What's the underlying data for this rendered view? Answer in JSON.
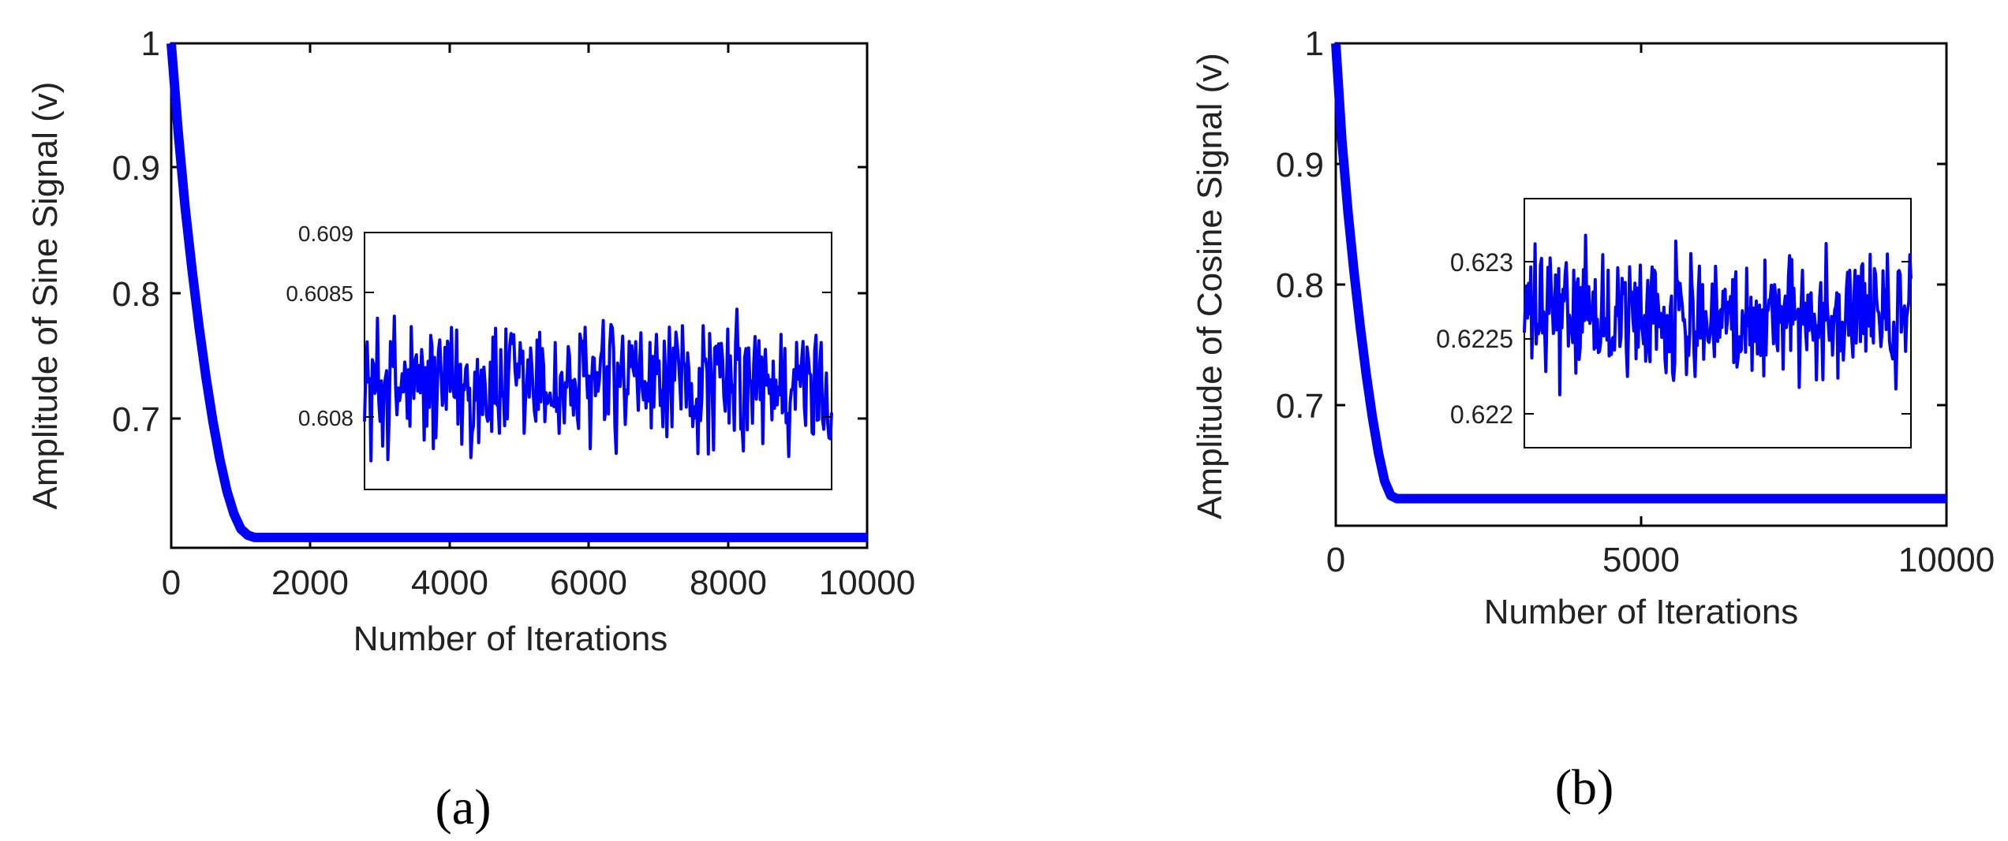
{
  "chart_data": [
    {
      "panel": "(a)",
      "type": "line",
      "xlabel": "Number of Iterations",
      "ylabel": "Amplitude of Sine Signal (v)",
      "xlim": [
        0,
        10000
      ],
      "ylim": [
        0.6,
        1.0
      ],
      "xticks": [
        "0",
        "2000",
        "4000",
        "6000",
        "8000",
        "10000"
      ],
      "yticks": [
        "0.7",
        "0.8",
        "0.9",
        "1"
      ],
      "grid": false,
      "line_color": "#0000ff",
      "series": [
        {
          "x": [
            0,
            100,
            200,
            300,
            400,
            500,
            600,
            700,
            800,
            900,
            1000,
            1100,
            1200,
            2000,
            4000,
            6000,
            8000,
            10000
          ],
          "y": [
            1.0,
            0.93,
            0.87,
            0.82,
            0.775,
            0.735,
            0.7,
            0.67,
            0.645,
            0.627,
            0.615,
            0.61,
            0.6082,
            0.6082,
            0.6082,
            0.6082,
            0.6082,
            0.6082
          ]
        }
      ],
      "inset": {
        "ylim": [
          0.6077,
          0.609
        ],
        "yticks": [
          "0.609",
          "0.6085",
          "0.608"
        ],
        "mean": 0.60822,
        "amplitude": 0.0004
      }
    },
    {
      "panel": "(b)",
      "type": "line",
      "xlabel": "Number of Iterations",
      "ylabel": "Amplitude of Cosine Signal (v)",
      "xlim": [
        0,
        10000
      ],
      "ylim": [
        0.6,
        1.0
      ],
      "xticks": [
        "0",
        "5000",
        "10000"
      ],
      "yticks": [
        "0.7",
        "0.8",
        "0.9",
        "1"
      ],
      "grid": false,
      "line_color": "#0000ff",
      "series": [
        {
          "x": [
            0,
            100,
            200,
            300,
            400,
            500,
            600,
            700,
            800,
            900,
            1000,
            2000,
            4000,
            6000,
            8000,
            10000
          ],
          "y": [
            1.0,
            0.92,
            0.86,
            0.81,
            0.765,
            0.725,
            0.69,
            0.66,
            0.637,
            0.625,
            0.6225,
            0.6225,
            0.6225,
            0.6225,
            0.6225,
            0.6225
          ]
        }
      ],
      "inset": {
        "ylim": [
          0.6218,
          0.6232
        ],
        "yticks": [
          "0.623",
          "0.6225",
          "0.622"
        ],
        "mean": 0.62255,
        "amplitude": 0.0004
      }
    }
  ]
}
